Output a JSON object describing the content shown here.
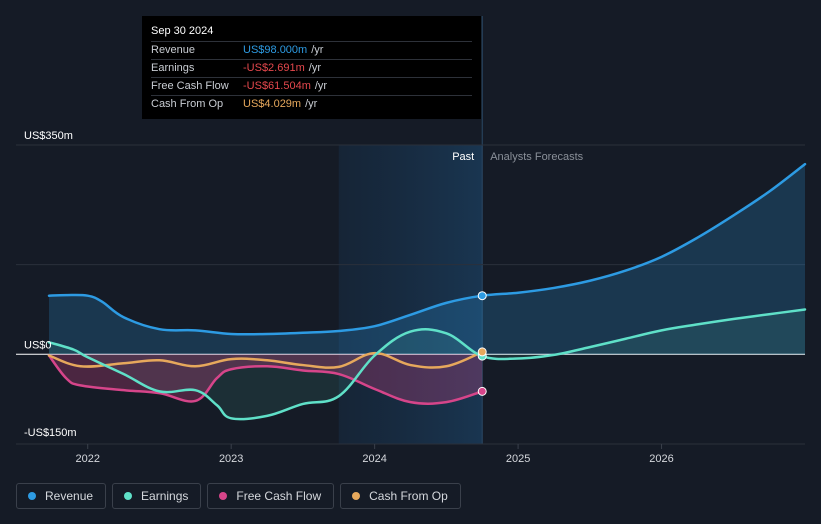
{
  "tooltip": {
    "date": "Sep 30 2024",
    "rows": [
      {
        "label": "Revenue",
        "value": "US$98.000m",
        "unit": "/yr",
        "color": "#2d9be3"
      },
      {
        "label": "Earnings",
        "value": "-US$2.691m",
        "unit": "/yr",
        "color": "#e5484d"
      },
      {
        "label": "Free Cash Flow",
        "value": "-US$61.504m",
        "unit": "/yr",
        "color": "#e5484d"
      },
      {
        "label": "Cash From Op",
        "value": "US$4.029m",
        "unit": "/yr",
        "color": "#e6a85c"
      }
    ]
  },
  "labels": {
    "past": "Past",
    "forecast": "Analysts Forecasts"
  },
  "legend": [
    {
      "label": "Revenue",
      "color": "#2d9be3"
    },
    {
      "label": "Earnings",
      "color": "#5fe0c8"
    },
    {
      "label": "Free Cash Flow",
      "color": "#d6458a"
    },
    {
      "label": "Cash From Op",
      "color": "#e6a85c"
    }
  ],
  "chart_data": {
    "type": "line",
    "y_tick_labels": [
      "US$350m",
      "US$0",
      "-US$150m"
    ],
    "x_tick_labels": [
      "2022",
      "2023",
      "2024",
      "2025",
      "2026"
    ],
    "ylim": [
      -150,
      350
    ],
    "xlim": [
      2021.5,
      2027.0
    ],
    "forecast_start": 2024.75,
    "highlight_start": 2023.75,
    "series": [
      {
        "name": "Revenue",
        "color": "#2d9be3",
        "x": [
          2021.73,
          2021.85,
          2022.0,
          2022.1,
          2022.25,
          2022.5,
          2022.75,
          2023.0,
          2023.25,
          2023.5,
          2023.75,
          2024.0,
          2024.25,
          2024.5,
          2024.75,
          2025.0,
          2025.25,
          2025.5,
          2025.75,
          2026.0,
          2026.25,
          2026.5,
          2026.75,
          2027.0
        ],
        "y": [
          98,
          99,
          98,
          88,
          62,
          42,
          40,
          34,
          34,
          36,
          39,
          47,
          66,
          86,
          98,
          103,
          111,
          123,
          140,
          163,
          195,
          232,
          272,
          318
        ]
      },
      {
        "name": "Earnings",
        "color": "#5fe0c8",
        "x": [
          2021.73,
          2021.9,
          2022.0,
          2022.25,
          2022.5,
          2022.75,
          2022.9,
          2023.0,
          2023.25,
          2023.5,
          2023.75,
          2024.0,
          2024.25,
          2024.5,
          2024.75,
          2025.0,
          2025.25,
          2025.5,
          2025.75,
          2026.0,
          2026.25,
          2026.5,
          2026.75,
          2027.0
        ],
        "y": [
          20,
          8,
          -5,
          -33,
          -62,
          -60,
          -85,
          -107,
          -103,
          -83,
          -70,
          -2,
          38,
          35,
          -3,
          -7,
          -1,
          12,
          26,
          40,
          50,
          59,
          67,
          75
        ]
      },
      {
        "name": "Free Cash Flow",
        "color": "#d6458a",
        "x": [
          2021.73,
          2021.85,
          2021.95,
          2022.25,
          2022.5,
          2022.75,
          2022.9,
          2023.0,
          2023.25,
          2023.5,
          2023.75,
          2024.0,
          2024.25,
          2024.5,
          2024.75
        ],
        "y": [
          -2,
          -40,
          -52,
          -60,
          -65,
          -78,
          -40,
          -25,
          -20,
          -27,
          -33,
          -58,
          -80,
          -80,
          -62
        ]
      },
      {
        "name": "Cash From Op",
        "color": "#e6a85c",
        "x": [
          2021.73,
          2021.95,
          2022.25,
          2022.5,
          2022.75,
          2023.0,
          2023.25,
          2023.5,
          2023.75,
          2024.0,
          2024.25,
          2024.5,
          2024.75
        ],
        "y": [
          -2,
          -20,
          -15,
          -10,
          -20,
          -8,
          -10,
          -18,
          -21,
          2,
          -18,
          -20,
          4
        ]
      }
    ]
  }
}
